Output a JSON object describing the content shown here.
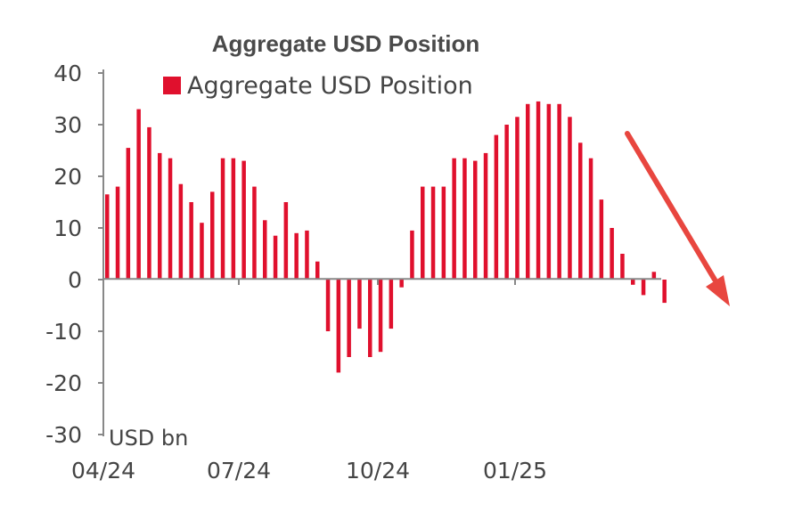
{
  "chart_data": {
    "type": "bar",
    "title": "Aggregate USD Position",
    "unit_label": "USD bn",
    "legend": [
      "Aggregate USD Position"
    ],
    "legend_placement": "top-left",
    "series": [
      {
        "name": "Aggregate USD Position",
        "color": "#e0102d",
        "values": [
          16.5,
          18,
          25.5,
          33,
          29.5,
          24.5,
          23.5,
          18.5,
          15,
          11,
          17,
          23.5,
          23.5,
          23,
          18,
          11.5,
          8.5,
          15,
          9,
          9.5,
          3.5,
          -10,
          -18,
          -15,
          -9.5,
          -15,
          -14,
          -9.5,
          -1.5,
          9.5,
          18,
          18,
          18,
          23.5,
          23.5,
          23,
          24.5,
          28,
          30,
          31.5,
          34,
          34.5,
          34,
          34,
          31.5,
          26.5,
          23.5,
          15.5,
          10,
          5,
          -1,
          -3,
          1.5,
          -4.5
        ]
      }
    ],
    "ylim": [
      -30,
      40
    ],
    "yticks": [
      "40",
      "30",
      "20",
      "10",
      "0",
      "-10",
      "-20",
      "-30"
    ],
    "xticks": [
      "04/24",
      "07/24",
      "10/24",
      "01/25"
    ],
    "grid": false,
    "annotation": "red downward arrow pointing right of the latest bars"
  }
}
